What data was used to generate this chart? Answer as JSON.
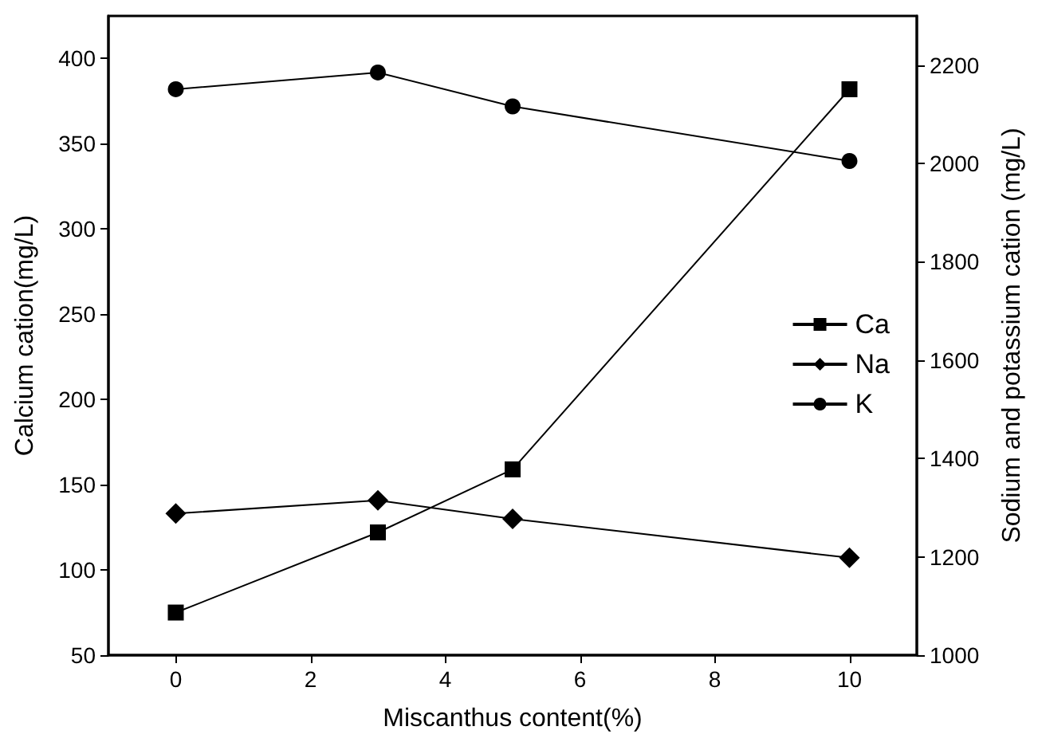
{
  "chart_data": {
    "type": "line",
    "xlabel": "Miscanthus content(%)",
    "ylabel": "Calcium cation(mg/L)",
    "y2label": "Sodium and potassium cation (mg/L)",
    "x": [
      0,
      3,
      5,
      10
    ],
    "series": [
      {
        "name": "Ca",
        "color": "#000000",
        "marker": "square",
        "values": [
          75,
          122,
          159,
          382
        ]
      },
      {
        "name": "Na",
        "color": "#000000",
        "marker": "diamond",
        "axis": "y2",
        "values": [
          1288,
          1315,
          1277,
          1198
        ]
      },
      {
        "name": "K",
        "color": "#000000",
        "marker": "circle",
        "axis": "y2",
        "values": [
          2151,
          2185,
          2116,
          2005
        ]
      }
    ],
    "xlim": [
      -1,
      11
    ],
    "xticks": [
      0,
      2,
      4,
      6,
      8,
      10
    ],
    "ylim": [
      50,
      425
    ],
    "yticks": [
      50,
      100,
      150,
      200,
      250,
      300,
      350,
      400
    ],
    "y2lim": [
      1000,
      2300
    ],
    "y2ticks": [
      1000,
      1200,
      1400,
      1600,
      1800,
      2000,
      2200
    ],
    "legend": "right",
    "grid": false,
    "line_style": "solid"
  }
}
